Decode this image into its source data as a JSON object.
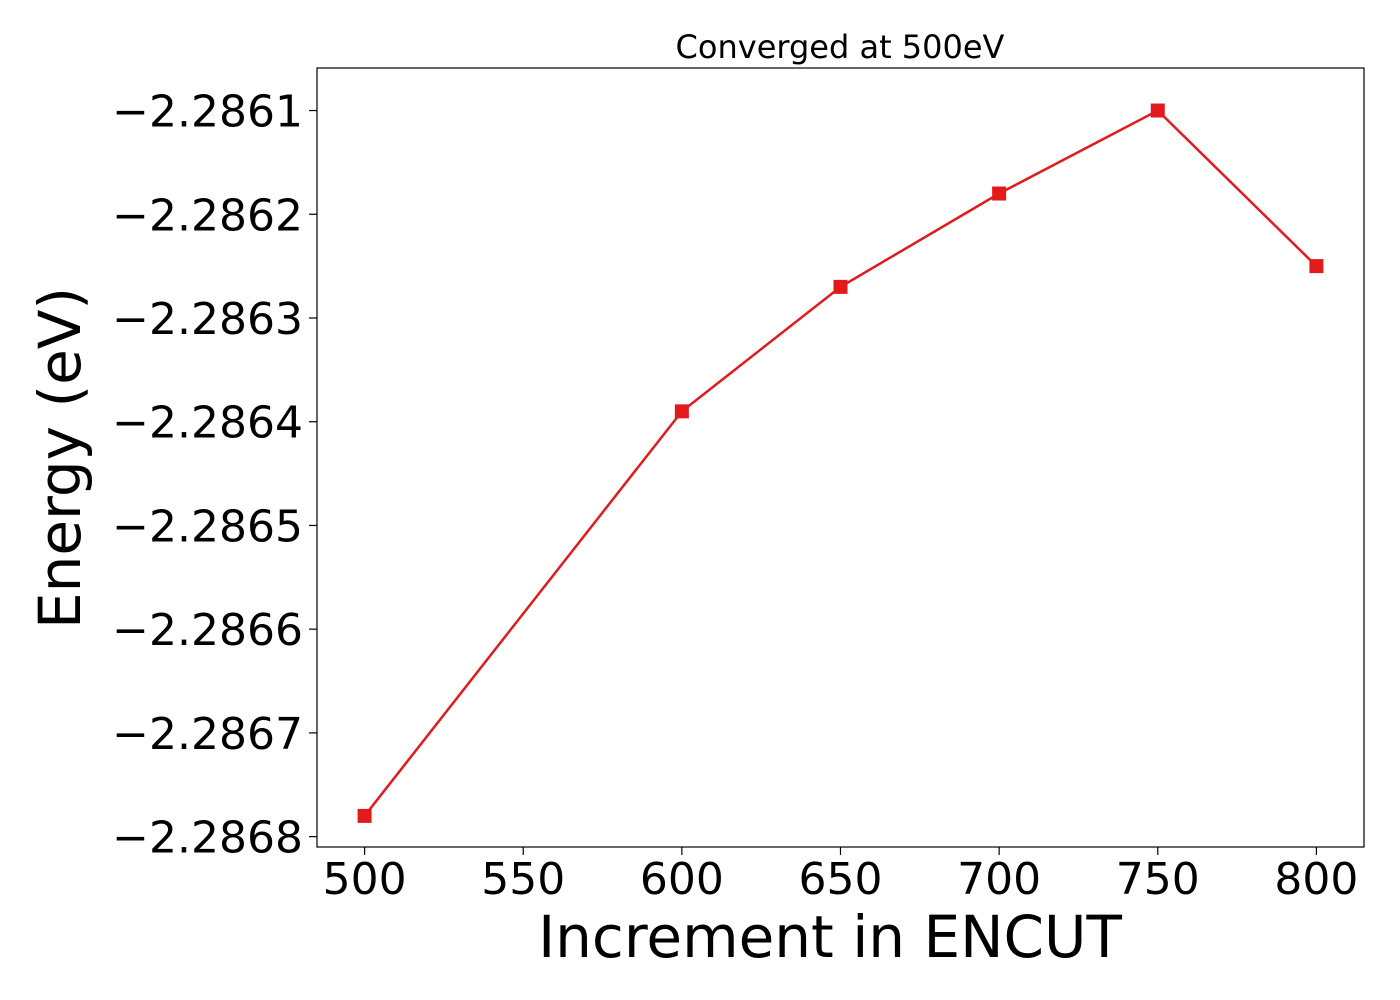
{
  "chart_data": {
    "type": "line",
    "title": "Converged at 500eV",
    "xlabel": "Increment in ENCUT",
    "ylabel": "Energy (eV)",
    "x": [
      500,
      600,
      650,
      700,
      750,
      800
    ],
    "series": [
      {
        "values": [
          -2.28678,
          -2.28639,
          -2.28627,
          -2.28618,
          -2.2861,
          -2.28625
        ],
        "color": "#e31a1c",
        "marker": "square"
      }
    ],
    "xticks": [
      500,
      550,
      600,
      650,
      700,
      750,
      800
    ],
    "xtick_labels": [
      "500",
      "550",
      "600",
      "650",
      "700",
      "750",
      "800"
    ],
    "yticks": [
      -2.2868,
      -2.2867,
      -2.2866,
      -2.2865,
      -2.2864,
      -2.2863,
      -2.2862,
      -2.2861
    ],
    "ytick_labels": [
      "−2.2868",
      "−2.2867",
      "−2.2866",
      "−2.2865",
      "−2.2864",
      "−2.2863",
      "−2.2862",
      "−2.2861"
    ],
    "xlim": [
      485,
      815
    ],
    "ylim": [
      -2.28681,
      -2.286059
    ],
    "grid": false,
    "legend": "none"
  }
}
